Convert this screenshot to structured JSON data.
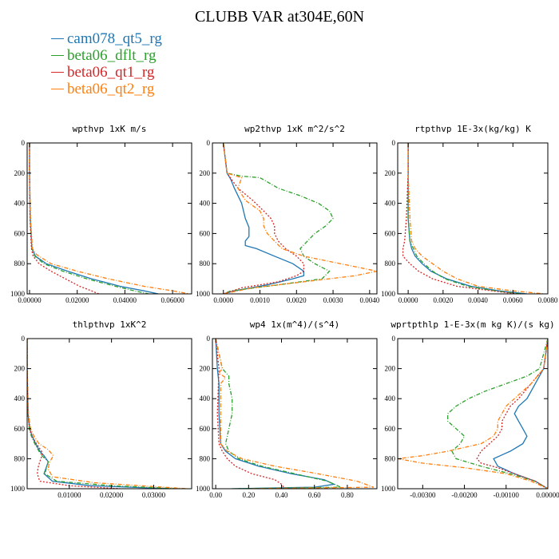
{
  "title": "CLUBB VAR at304E,60N",
  "legend": [
    {
      "label": "cam078_qt5_rg",
      "color": "#1f77b4"
    },
    {
      "label": "beta06_dflt_rg",
      "color": "#2ca02c"
    },
    {
      "label": "beta06_qt1_rg",
      "color": "#d62728"
    },
    {
      "label": "beta06_qt2_rg",
      "color": "#ff7f0e"
    }
  ],
  "chart_data": [
    {
      "type": "line",
      "title": "wpthvp  1xK m/s",
      "xlim": [
        -0.001,
        0.068
      ],
      "ylim": [
        1000,
        0
      ],
      "xticks": [
        "0.00000",
        "0.02000",
        "0.04000",
        "0.06000"
      ],
      "xtick_values": [
        0,
        0.02,
        0.04,
        0.06
      ],
      "yticks": [
        "0",
        "200",
        "400",
        "600",
        "800",
        "1000"
      ],
      "ytick_values": [
        0,
        200,
        400,
        600,
        800,
        1000
      ],
      "series": [
        {
          "y": [
            0,
            200,
            500,
            700,
            750,
            800,
            850,
            900,
            950,
            980,
            1000
          ],
          "x": [
            0,
            0,
            0.0003,
            0.001,
            0.0025,
            0.007,
            0.016,
            0.026,
            0.038,
            0.048,
            0.054
          ]
        },
        {
          "y": [
            0,
            200,
            500,
            700,
            750,
            800,
            850,
            900,
            950,
            980,
            1000
          ],
          "x": [
            0,
            0,
            0.0003,
            0.001,
            0.0022,
            0.006,
            0.014,
            0.024,
            0.036,
            0.044,
            0.05
          ]
        },
        {
          "y": [
            0,
            200,
            500,
            700,
            750,
            800,
            850,
            900,
            950,
            980,
            1000
          ],
          "x": [
            0,
            0,
            0.0002,
            0.0008,
            0.0015,
            0.004,
            0.009,
            0.015,
            0.021,
            0.026,
            0.029
          ]
        },
        {
          "y": [
            0,
            200,
            500,
            700,
            740,
            800,
            850,
            900,
            950,
            980,
            1000
          ],
          "x": [
            0,
            0,
            0.0004,
            0.0012,
            0.003,
            0.009,
            0.02,
            0.033,
            0.048,
            0.06,
            0.067
          ]
        }
      ]
    },
    {
      "type": "line",
      "title": "wp2thvp  1xK m^2/s^2",
      "xlim": [
        -0.0003,
        0.0042
      ],
      "ylim": [
        1000,
        0
      ],
      "xticks": [
        "0.0000",
        "0.0010",
        "0.0020",
        "0.0030",
        "0.0040"
      ],
      "xtick_values": [
        0,
        0.001,
        0.002,
        0.003,
        0.004
      ],
      "yticks": [
        "0",
        "200",
        "400",
        "600",
        "800",
        "1000"
      ],
      "ytick_values": [
        0,
        200,
        400,
        600,
        800,
        1000
      ],
      "series": [
        {
          "y": [
            0,
            200,
            240,
            300,
            400,
            500,
            560,
            620,
            650,
            680,
            700,
            750,
            800,
            850,
            880,
            900,
            940,
            980,
            1000
          ],
          "x": [
            0,
            0.0001,
            0.0002,
            0.0003,
            0.0005,
            0.0006,
            0.0007,
            0.0007,
            0.0006,
            0.0006,
            0.0009,
            0.0014,
            0.0019,
            0.0022,
            0.0022,
            0.0019,
            0.0012,
            0.0003,
            0
          ]
        },
        {
          "y": [
            0,
            200,
            220,
            230,
            300,
            350,
            400,
            450,
            500,
            550,
            600,
            650,
            700,
            750,
            800,
            850,
            900,
            940,
            980,
            1000
          ],
          "x": [
            0,
            0.0001,
            0.0005,
            0.001,
            0.0015,
            0.0021,
            0.0026,
            0.0029,
            0.003,
            0.0028,
            0.0025,
            0.0023,
            0.0021,
            0.0022,
            0.0025,
            0.0029,
            0.0027,
            0.0015,
            0.0002,
            0
          ]
        },
        {
          "y": [
            0,
            200,
            300,
            380,
            450,
            500,
            550,
            600,
            650,
            700,
            750,
            800,
            850,
            880,
            920,
            960,
            1000
          ],
          "x": [
            0,
            0.0001,
            0.0004,
            0.0008,
            0.0011,
            0.0013,
            0.0014,
            0.0014,
            0.0015,
            0.0017,
            0.002,
            0.0022,
            0.0022,
            0.002,
            0.0015,
            0.0005,
            0
          ]
        },
        {
          "y": [
            0,
            200,
            230,
            300,
            380,
            450,
            500,
            550,
            600,
            650,
            700,
            750,
            800,
            850,
            880,
            920,
            960,
            1000
          ],
          "x": [
            0,
            0.0001,
            0.0005,
            0.0004,
            0.0006,
            0.001,
            0.0011,
            0.0011,
            0.0012,
            0.0014,
            0.0016,
            0.0022,
            0.0032,
            0.0042,
            0.0036,
            0.0022,
            0.0008,
            0
          ]
        }
      ]
    },
    {
      "type": "line",
      "title": "rtpthvp  1E-3x(kg/kg) K",
      "xlim": [
        -0.0006,
        0.008
      ],
      "ylim": [
        1000,
        0
      ],
      "xticks": [
        "0.0000",
        "0.0020",
        "0.0040",
        "0.0060",
        "0.0080"
      ],
      "xtick_values": [
        0,
        0.002,
        0.004,
        0.006,
        0.008
      ],
      "yticks": [
        "0",
        "200",
        "400",
        "600",
        "800",
        "1000"
      ],
      "ytick_values": [
        0,
        200,
        400,
        600,
        800,
        1000
      ],
      "series": [
        {
          "y": [
            0,
            200,
            500,
            650,
            700,
            750,
            800,
            850,
            900,
            950,
            980,
            1000
          ],
          "x": [
            0,
            0,
            0,
            0.0001,
            0.0002,
            0.0004,
            0.0008,
            0.0013,
            0.0022,
            0.0036,
            0.0052,
            0.0068
          ]
        },
        {
          "y": [
            0,
            200,
            500,
            650,
            700,
            750,
            800,
            850,
            900,
            950,
            980,
            1000
          ],
          "x": [
            0,
            0,
            0,
            0.0001,
            0.0003,
            0.0005,
            0.0009,
            0.0014,
            0.0021,
            0.0034,
            0.005,
            0.0065
          ]
        },
        {
          "y": [
            0,
            200,
            500,
            650,
            700,
            750,
            800,
            850,
            900,
            950,
            980,
            1000
          ],
          "x": [
            0,
            0,
            -0.0001,
            -0.0002,
            -0.0003,
            -0.0003,
            0.0001,
            0.0006,
            0.0014,
            0.0028,
            0.0048,
            0.0062
          ]
        },
        {
          "y": [
            0,
            200,
            500,
            650,
            700,
            750,
            800,
            850,
            900,
            950,
            980,
            1000
          ],
          "x": [
            0,
            0,
            0.0001,
            0.0002,
            0.0004,
            0.0008,
            0.0014,
            0.002,
            0.0028,
            0.004,
            0.006,
            0.0078
          ]
        }
      ]
    },
    {
      "type": "line",
      "title": "thlpthvp  1xK^2",
      "xlim": [
        0,
        0.039
      ],
      "ylim": [
        1000,
        0
      ],
      "xticks": [
        "0.01000",
        "0.02000",
        "0.03000"
      ],
      "xtick_values": [
        0.01,
        0.02,
        0.03
      ],
      "yticks": [
        "0",
        "200",
        "400",
        "600",
        "800",
        "1000"
      ],
      "ytick_values": [
        0,
        200,
        400,
        600,
        800,
        1000
      ],
      "series": [
        {
          "y": [
            0,
            200,
            500,
            600,
            650,
            700,
            750,
            780,
            820,
            860,
            900,
            950,
            980,
            1000
          ],
          "x": [
            0,
            0,
            0.0002,
            0.0006,
            0.0012,
            0.002,
            0.003,
            0.004,
            0.005,
            0.0045,
            0.004,
            0.006,
            0.015,
            0.034
          ]
        },
        {
          "y": [
            0,
            200,
            500,
            600,
            650,
            700,
            750,
            780,
            820,
            860,
            900,
            950,
            980,
            1000
          ],
          "x": [
            0,
            0,
            0.0002,
            0.0005,
            0.001,
            0.0018,
            0.0028,
            0.0035,
            0.005,
            0.0046,
            0.0042,
            0.007,
            0.02,
            0.036
          ]
        },
        {
          "y": [
            0,
            200,
            500,
            600,
            650,
            700,
            750,
            780,
            820,
            860,
            900,
            950,
            980,
            1000
          ],
          "x": [
            0,
            0,
            0.0002,
            0.0006,
            0.0012,
            0.0022,
            0.0034,
            0.0035,
            0.003,
            0.0026,
            0.0024,
            0.003,
            0.01,
            0.022
          ]
        },
        {
          "y": [
            0,
            200,
            500,
            600,
            650,
            700,
            740,
            780,
            800,
            830,
            870,
            920,
            960,
            1000
          ],
          "x": [
            0,
            0,
            0.0003,
            0.0008,
            0.0016,
            0.0028,
            0.005,
            0.0062,
            0.0058,
            0.0052,
            0.005,
            0.006,
            0.016,
            0.038
          ]
        }
      ]
    },
    {
      "type": "line",
      "title": "wp4  1x(m^4)/(s^4)",
      "xlim": [
        -0.02,
        0.98
      ],
      "ylim": [
        1000,
        0
      ],
      "xticks": [
        "0.00",
        "0.20",
        "0.40",
        "0.60",
        "0.80"
      ],
      "xtick_values": [
        0,
        0.2,
        0.4,
        0.6,
        0.8
      ],
      "yticks": [
        "0",
        "200",
        "400",
        "600",
        "800",
        "1000"
      ],
      "ytick_values": [
        0,
        200,
        400,
        600,
        800,
        1000
      ],
      "series": [
        {
          "y": [
            0,
            200,
            300,
            500,
            700,
            750,
            800,
            850,
            900,
            940,
            970,
            990,
            1000
          ],
          "x": [
            0,
            0.01,
            0.02,
            0.02,
            0.03,
            0.06,
            0.12,
            0.26,
            0.46,
            0.66,
            0.72,
            0.6,
            0.1
          ]
        },
        {
          "y": [
            0,
            200,
            250,
            300,
            400,
            500,
            600,
            700,
            750,
            800,
            850,
            900,
            950,
            990,
            1000
          ],
          "x": [
            0,
            0.04,
            0.08,
            0.08,
            0.1,
            0.1,
            0.08,
            0.06,
            0.08,
            0.14,
            0.28,
            0.48,
            0.68,
            0.76,
            0.1
          ]
        },
        {
          "y": [
            0,
            200,
            500,
            700,
            750,
            800,
            850,
            900,
            940,
            970,
            1000
          ],
          "x": [
            0,
            0.02,
            0.01,
            0.02,
            0.04,
            0.07,
            0.12,
            0.22,
            0.36,
            0.4,
            0.42
          ]
        },
        {
          "y": [
            0,
            200,
            230,
            260,
            300,
            500,
            700,
            750,
            800,
            850,
            900,
            950,
            990,
            1000
          ],
          "x": [
            0,
            0.04,
            0.02,
            0.06,
            0.03,
            0.03,
            0.03,
            0.07,
            0.16,
            0.36,
            0.62,
            0.86,
            0.96,
            0.2
          ]
        }
      ]
    },
    {
      "type": "line",
      "title": "wprtpthlp  1-E-3x(m kg K)/(s kg)",
      "xlim": [
        -0.0036,
        0
      ],
      "ylim": [
        1000,
        0
      ],
      "xticks": [
        "-0.00300",
        "-0.00200",
        "-0.00100",
        "0.00000"
      ],
      "xtick_values": [
        -0.003,
        -0.002,
        -0.001,
        0
      ],
      "yticks": [
        "0",
        "200",
        "400",
        "600",
        "800",
        "1000"
      ],
      "ytick_values": [
        0,
        200,
        400,
        600,
        800,
        1000
      ],
      "series": [
        {
          "y": [
            0,
            200,
            300,
            400,
            450,
            500,
            550,
            600,
            650,
            700,
            750,
            800,
            850,
            900,
            950,
            1000
          ],
          "x": [
            0,
            -0.0001,
            -0.0003,
            -0.0005,
            -0.0007,
            -0.0008,
            -0.0007,
            -0.0006,
            -0.0005,
            -0.0006,
            -0.0009,
            -0.0013,
            -0.0012,
            -0.0008,
            -0.0003,
            0
          ]
        },
        {
          "y": [
            0,
            200,
            250,
            300,
            350,
            400,
            450,
            500,
            550,
            600,
            650,
            700,
            750,
            800,
            850,
            900,
            950,
            1000
          ],
          "x": [
            0,
            -0.0002,
            -0.0005,
            -0.001,
            -0.0015,
            -0.0019,
            -0.0022,
            -0.0024,
            -0.0024,
            -0.0022,
            -0.002,
            -0.0021,
            -0.0023,
            -0.0022,
            -0.0016,
            -0.0009,
            -0.0003,
            0
          ]
        },
        {
          "y": [
            0,
            200,
            300,
            400,
            450,
            500,
            550,
            600,
            650,
            700,
            750,
            800,
            830,
            860,
            900,
            950,
            1000
          ],
          "x": [
            0,
            -0.0001,
            -0.0004,
            -0.0007,
            -0.0009,
            -0.001,
            -0.0011,
            -0.0011,
            -0.0012,
            -0.0014,
            -0.0016,
            -0.0017,
            -0.0016,
            -0.0012,
            -0.0008,
            -0.0003,
            0
          ]
        },
        {
          "y": [
            0,
            200,
            300,
            400,
            450,
            500,
            550,
            600,
            650,
            700,
            750,
            780,
            800,
            830,
            860,
            900,
            950,
            1000
          ],
          "x": [
            0,
            -0.0001,
            -0.0004,
            -0.0008,
            -0.001,
            -0.0011,
            -0.0012,
            -0.0012,
            -0.0013,
            -0.0016,
            -0.0024,
            -0.003,
            -0.0036,
            -0.003,
            -0.002,
            -0.001,
            -0.0004,
            0
          ]
        }
      ]
    }
  ]
}
